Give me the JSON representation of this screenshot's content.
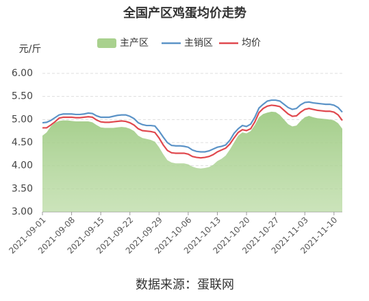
{
  "chart_data": {
    "type": "line",
    "title": "全国产区鸡蛋均价走势",
    "y_axis_label": "元/斤",
    "footer": "数据来源：蛋联网",
    "ylim": [
      3,
      6
    ],
    "yticks": [
      {
        "value": 3,
        "label": "3.00"
      },
      {
        "value": 3.5,
        "label": "3.50"
      },
      {
        "value": 4,
        "label": "4.00"
      },
      {
        "value": 4.5,
        "label": "4.50"
      },
      {
        "value": 5,
        "label": "5.00"
      },
      {
        "value": 5.5,
        "label": "5.50"
      },
      {
        "value": 6,
        "label": "6.00"
      }
    ],
    "grid": true,
    "x": [
      "2021-09-01",
      "2021-09-02",
      "2021-09-03",
      "2021-09-04",
      "2021-09-05",
      "2021-09-06",
      "2021-09-07",
      "2021-09-08",
      "2021-09-09",
      "2021-09-10",
      "2021-09-11",
      "2021-09-12",
      "2021-09-13",
      "2021-09-14",
      "2021-09-15",
      "2021-09-16",
      "2021-09-17",
      "2021-09-18",
      "2021-09-19",
      "2021-09-20",
      "2021-09-21",
      "2021-09-22",
      "2021-09-23",
      "2021-09-24",
      "2021-09-25",
      "2021-09-26",
      "2021-09-27",
      "2021-09-28",
      "2021-09-29",
      "2021-09-30",
      "2021-10-01",
      "2021-10-02",
      "2021-10-03",
      "2021-10-04",
      "2021-10-05",
      "2021-10-06",
      "2021-10-07",
      "2021-10-08",
      "2021-10-09",
      "2021-10-10",
      "2021-10-11",
      "2021-10-12",
      "2021-10-13",
      "2021-10-14",
      "2021-10-15",
      "2021-10-16",
      "2021-10-17",
      "2021-10-18",
      "2021-10-19",
      "2021-10-20",
      "2021-10-21",
      "2021-10-22",
      "2021-10-23",
      "2021-10-24",
      "2021-10-25",
      "2021-10-26",
      "2021-10-27",
      "2021-10-28",
      "2021-10-29",
      "2021-10-30",
      "2021-10-31",
      "2021-11-01",
      "2021-11-02",
      "2021-11-03",
      "2021-11-04",
      "2021-11-05",
      "2021-11-06",
      "2021-11-07",
      "2021-11-08",
      "2021-11-09",
      "2021-11-10",
      "2021-11-11",
      "2021-11-12"
    ],
    "xticks": [
      "2021-09-01",
      "2021-09-08",
      "2021-09-15",
      "2021-09-22",
      "2021-09-29",
      "2021-10-06",
      "2021-10-13",
      "2021-10-20",
      "2021-10-27",
      "2021-11-03",
      "2021-11-10"
    ],
    "series": [
      {
        "name": "主产区",
        "color": "#a9d18e",
        "kind": "area",
        "values": [
          4.65,
          4.72,
          4.85,
          4.93,
          4.97,
          4.98,
          4.98,
          4.97,
          4.96,
          4.96,
          4.96,
          4.96,
          4.94,
          4.88,
          4.83,
          4.82,
          4.82,
          4.82,
          4.83,
          4.84,
          4.83,
          4.8,
          4.75,
          4.65,
          4.6,
          4.58,
          4.56,
          4.52,
          4.4,
          4.25,
          4.12,
          4.07,
          4.05,
          4.05,
          4.05,
          4.03,
          3.98,
          3.95,
          3.94,
          3.95,
          3.97,
          4.02,
          4.1,
          4.15,
          4.22,
          4.35,
          4.5,
          4.65,
          4.72,
          4.7,
          4.75,
          4.88,
          5.05,
          5.12,
          5.15,
          5.17,
          5.16,
          5.1,
          5.0,
          4.9,
          4.85,
          4.87,
          4.97,
          5.05,
          5.08,
          5.05,
          5.03,
          5.02,
          5.01,
          5.0,
          4.98,
          4.92,
          4.8
        ]
      },
      {
        "name": "主销区",
        "color": "#5b93c7",
        "kind": "line",
        "values": [
          4.93,
          4.94,
          4.98,
          5.04,
          5.1,
          5.12,
          5.12,
          5.12,
          5.11,
          5.11,
          5.12,
          5.14,
          5.13,
          5.08,
          5.05,
          5.05,
          5.05,
          5.07,
          5.09,
          5.1,
          5.1,
          5.07,
          5.02,
          4.93,
          4.89,
          4.87,
          4.87,
          4.86,
          4.75,
          4.62,
          4.5,
          4.44,
          4.43,
          4.43,
          4.42,
          4.4,
          4.34,
          4.31,
          4.3,
          4.3,
          4.32,
          4.36,
          4.4,
          4.42,
          4.45,
          4.55,
          4.7,
          4.8,
          4.87,
          4.85,
          4.9,
          5.05,
          5.25,
          5.33,
          5.4,
          5.42,
          5.42,
          5.4,
          5.33,
          5.26,
          5.22,
          5.24,
          5.32,
          5.37,
          5.38,
          5.36,
          5.35,
          5.34,
          5.33,
          5.33,
          5.31,
          5.26,
          5.16
        ]
      },
      {
        "name": "均价",
        "color": "#e0484e",
        "kind": "line",
        "values": [
          4.82,
          4.82,
          4.88,
          4.95,
          5.03,
          5.05,
          5.05,
          5.05,
          5.04,
          5.04,
          5.05,
          5.06,
          5.05,
          4.99,
          4.95,
          4.94,
          4.94,
          4.95,
          4.96,
          4.97,
          4.96,
          4.93,
          4.88,
          4.8,
          4.76,
          4.75,
          4.74,
          4.72,
          4.6,
          4.45,
          4.33,
          4.28,
          4.27,
          4.27,
          4.27,
          4.25,
          4.2,
          4.18,
          4.17,
          4.18,
          4.2,
          4.24,
          4.3,
          4.34,
          4.38,
          4.47,
          4.6,
          4.72,
          4.78,
          4.76,
          4.8,
          4.95,
          5.15,
          5.24,
          5.29,
          5.31,
          5.3,
          5.28,
          5.2,
          5.12,
          5.07,
          5.08,
          5.16,
          5.22,
          5.24,
          5.22,
          5.2,
          5.19,
          5.18,
          5.18,
          5.16,
          5.1,
          4.98
        ]
      }
    ]
  }
}
